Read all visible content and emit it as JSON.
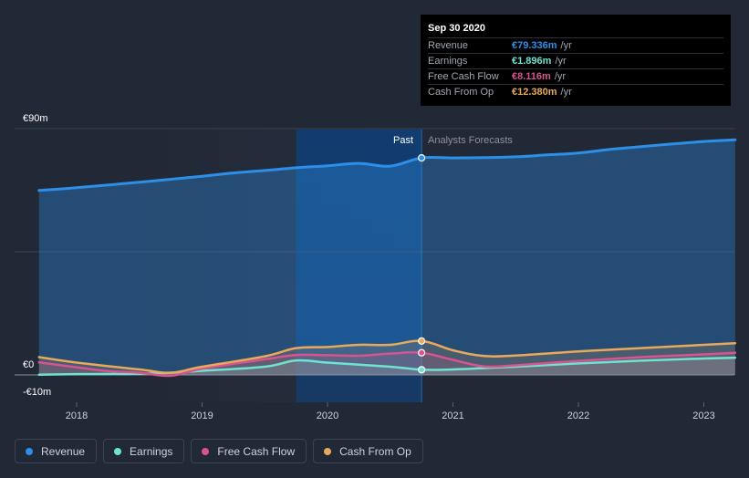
{
  "chart_data": {
    "type": "area",
    "y_unit": "€",
    "ylim": [
      -10,
      90
    ],
    "y_axis_labels": [
      "€90m",
      "€0",
      "-€10m"
    ],
    "x_ticks": [
      "2018",
      "2019",
      "2020",
      "2021",
      "2022",
      "2023"
    ],
    "past_label": "Past",
    "forecast_label": "Analysts Forecasts",
    "split_year": 2020.75,
    "series": [
      {
        "name": "Revenue",
        "color": "#2d8fe8",
        "points": [
          [
            2017.7,
            67.4
          ],
          [
            2018.0,
            68.4
          ],
          [
            2018.5,
            70.4
          ],
          [
            2019.0,
            72.6
          ],
          [
            2019.25,
            73.8
          ],
          [
            2019.5,
            74.7
          ],
          [
            2019.75,
            75.7
          ],
          [
            2020.0,
            76.4
          ],
          [
            2020.25,
            77.3
          ],
          [
            2020.5,
            76.3
          ],
          [
            2020.75,
            79.3
          ],
          [
            2021.0,
            79.3
          ],
          [
            2021.25,
            79.4
          ],
          [
            2021.5,
            79.7
          ],
          [
            2021.75,
            80.4
          ],
          [
            2022.0,
            81.1
          ],
          [
            2022.25,
            82.4
          ],
          [
            2022.5,
            83.4
          ],
          [
            2022.75,
            84.4
          ],
          [
            2023.0,
            85.3
          ],
          [
            2023.25,
            85.9
          ]
        ]
      },
      {
        "name": "Earnings",
        "color": "#6fe3d0",
        "points": [
          [
            2017.7,
            0.1
          ],
          [
            2018.0,
            0.3
          ],
          [
            2018.5,
            0.4
          ],
          [
            2018.75,
            0.8
          ],
          [
            2019.0,
            1.5
          ],
          [
            2019.5,
            3.0
          ],
          [
            2019.75,
            5.3
          ],
          [
            2020.0,
            4.5
          ],
          [
            2020.5,
            3.0
          ],
          [
            2020.75,
            1.9
          ],
          [
            2021.0,
            2.0
          ],
          [
            2021.25,
            2.5
          ],
          [
            2021.5,
            3.0
          ],
          [
            2022.0,
            4.2
          ],
          [
            2022.5,
            5.2
          ],
          [
            2023.0,
            6.0
          ],
          [
            2023.25,
            6.3
          ]
        ]
      },
      {
        "name": "Free Cash Flow",
        "color": "#d8538f",
        "points": [
          [
            2017.7,
            4.6
          ],
          [
            2018.0,
            2.8
          ],
          [
            2018.25,
            1.4
          ],
          [
            2018.5,
            0.8
          ],
          [
            2018.75,
            -0.3
          ],
          [
            2019.0,
            2.3
          ],
          [
            2019.5,
            5.7
          ],
          [
            2019.75,
            7.3
          ],
          [
            2020.0,
            7.2
          ],
          [
            2020.25,
            7.0
          ],
          [
            2020.5,
            7.8
          ],
          [
            2020.75,
            8.1
          ],
          [
            2021.0,
            5.5
          ],
          [
            2021.25,
            3.1
          ],
          [
            2021.5,
            3.5
          ],
          [
            2022.0,
            5.1
          ],
          [
            2022.5,
            6.5
          ],
          [
            2023.0,
            7.5
          ],
          [
            2023.25,
            8.1
          ]
        ]
      },
      {
        "name": "Cash From Op",
        "color": "#e7a95b",
        "points": [
          [
            2017.7,
            6.5
          ],
          [
            2018.0,
            4.5
          ],
          [
            2018.5,
            2.0
          ],
          [
            2018.75,
            0.8
          ],
          [
            2019.0,
            3.0
          ],
          [
            2019.5,
            6.8
          ],
          [
            2019.75,
            9.8
          ],
          [
            2020.0,
            10.2
          ],
          [
            2020.25,
            11.0
          ],
          [
            2020.5,
            11.0
          ],
          [
            2020.75,
            12.4
          ],
          [
            2021.0,
            9.0
          ],
          [
            2021.25,
            6.9
          ],
          [
            2021.5,
            7.1
          ],
          [
            2022.0,
            8.6
          ],
          [
            2022.5,
            9.8
          ],
          [
            2023.0,
            11.0
          ],
          [
            2023.25,
            11.6
          ]
        ]
      }
    ]
  },
  "tooltip": {
    "date": "Sep 30 2020",
    "unit": "/yr",
    "rows": [
      {
        "label": "Revenue",
        "value": "€79.336m",
        "color": "#2d8fe8"
      },
      {
        "label": "Earnings",
        "value": "€1.896m",
        "color": "#6fe3d0"
      },
      {
        "label": "Free Cash Flow",
        "value": "€8.116m",
        "color": "#d8538f"
      },
      {
        "label": "Cash From Op",
        "value": "€12.380m",
        "color": "#e7a95b"
      }
    ]
  },
  "legend": [
    {
      "label": "Revenue",
      "color": "#2d8fe8"
    },
    {
      "label": "Earnings",
      "color": "#6fe3d0"
    },
    {
      "label": "Free Cash Flow",
      "color": "#d8538f"
    },
    {
      "label": "Cash From Op",
      "color": "#e7a95b"
    }
  ]
}
